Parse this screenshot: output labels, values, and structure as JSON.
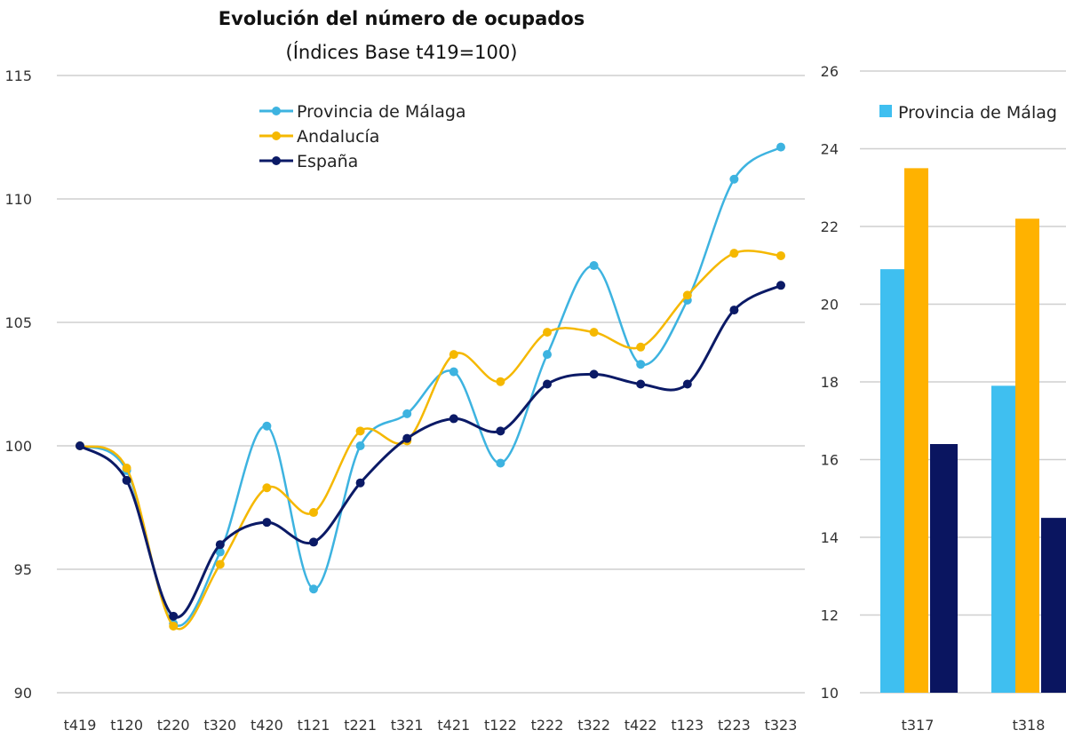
{
  "chart_data": [
    {
      "type": "line",
      "title": "Evolución del número de ocupados",
      "subtitle": "(Índices Base t419=100)",
      "xlabel": "",
      "ylabel": "",
      "x": [
        "t419",
        "t120",
        "t220",
        "t320",
        "t420",
        "t121",
        "t221",
        "t321",
        "t421",
        "t122",
        "t222",
        "t322",
        "t422",
        "t123",
        "t223",
        "t323"
      ],
      "ylim": [
        90,
        115
      ],
      "yticks": [
        90,
        95,
        100,
        105,
        110,
        115
      ],
      "grid": true,
      "smooth": true,
      "legend_position": "top-center",
      "series": [
        {
          "name": "Provincia de Málaga",
          "color": "#3DB3E0",
          "values": [
            100,
            99.0,
            92.8,
            95.7,
            100.8,
            94.2,
            100.0,
            101.3,
            103.0,
            99.3,
            103.7,
            107.3,
            103.3,
            105.9,
            110.8,
            112.1
          ]
        },
        {
          "name": "Andalucía",
          "color": "#F5B800",
          "values": [
            100,
            99.1,
            92.7,
            95.2,
            98.3,
            97.3,
            100.6,
            100.2,
            103.7,
            102.6,
            104.6,
            104.6,
            104.0,
            106.1,
            107.8,
            107.7
          ]
        },
        {
          "name": "España",
          "color": "#0B1A66",
          "values": [
            100,
            98.6,
            93.1,
            96.0,
            96.9,
            96.1,
            98.5,
            100.3,
            101.1,
            100.6,
            102.5,
            102.9,
            102.5,
            102.5,
            105.5,
            106.5
          ]
        }
      ]
    },
    {
      "type": "bar",
      "title": "",
      "categories": [
        "t317",
        "t318"
      ],
      "ylim": [
        10,
        26
      ],
      "yticks": [
        10,
        12,
        14,
        16,
        18,
        20,
        22,
        24,
        26
      ],
      "grid": true,
      "legend_visible_text": "Provincia de Málag",
      "legend_position": "top",
      "series": [
        {
          "name": "Provincia de Málaga",
          "color": "#3FBFF0",
          "values": [
            20.9,
            17.9
          ]
        },
        {
          "name": "Andalucía",
          "color": "#FFB200",
          "values": [
            23.5,
            22.2
          ]
        },
        {
          "name": "España",
          "color": "#0A1560",
          "values": [
            16.4,
            14.5
          ]
        }
      ]
    }
  ]
}
